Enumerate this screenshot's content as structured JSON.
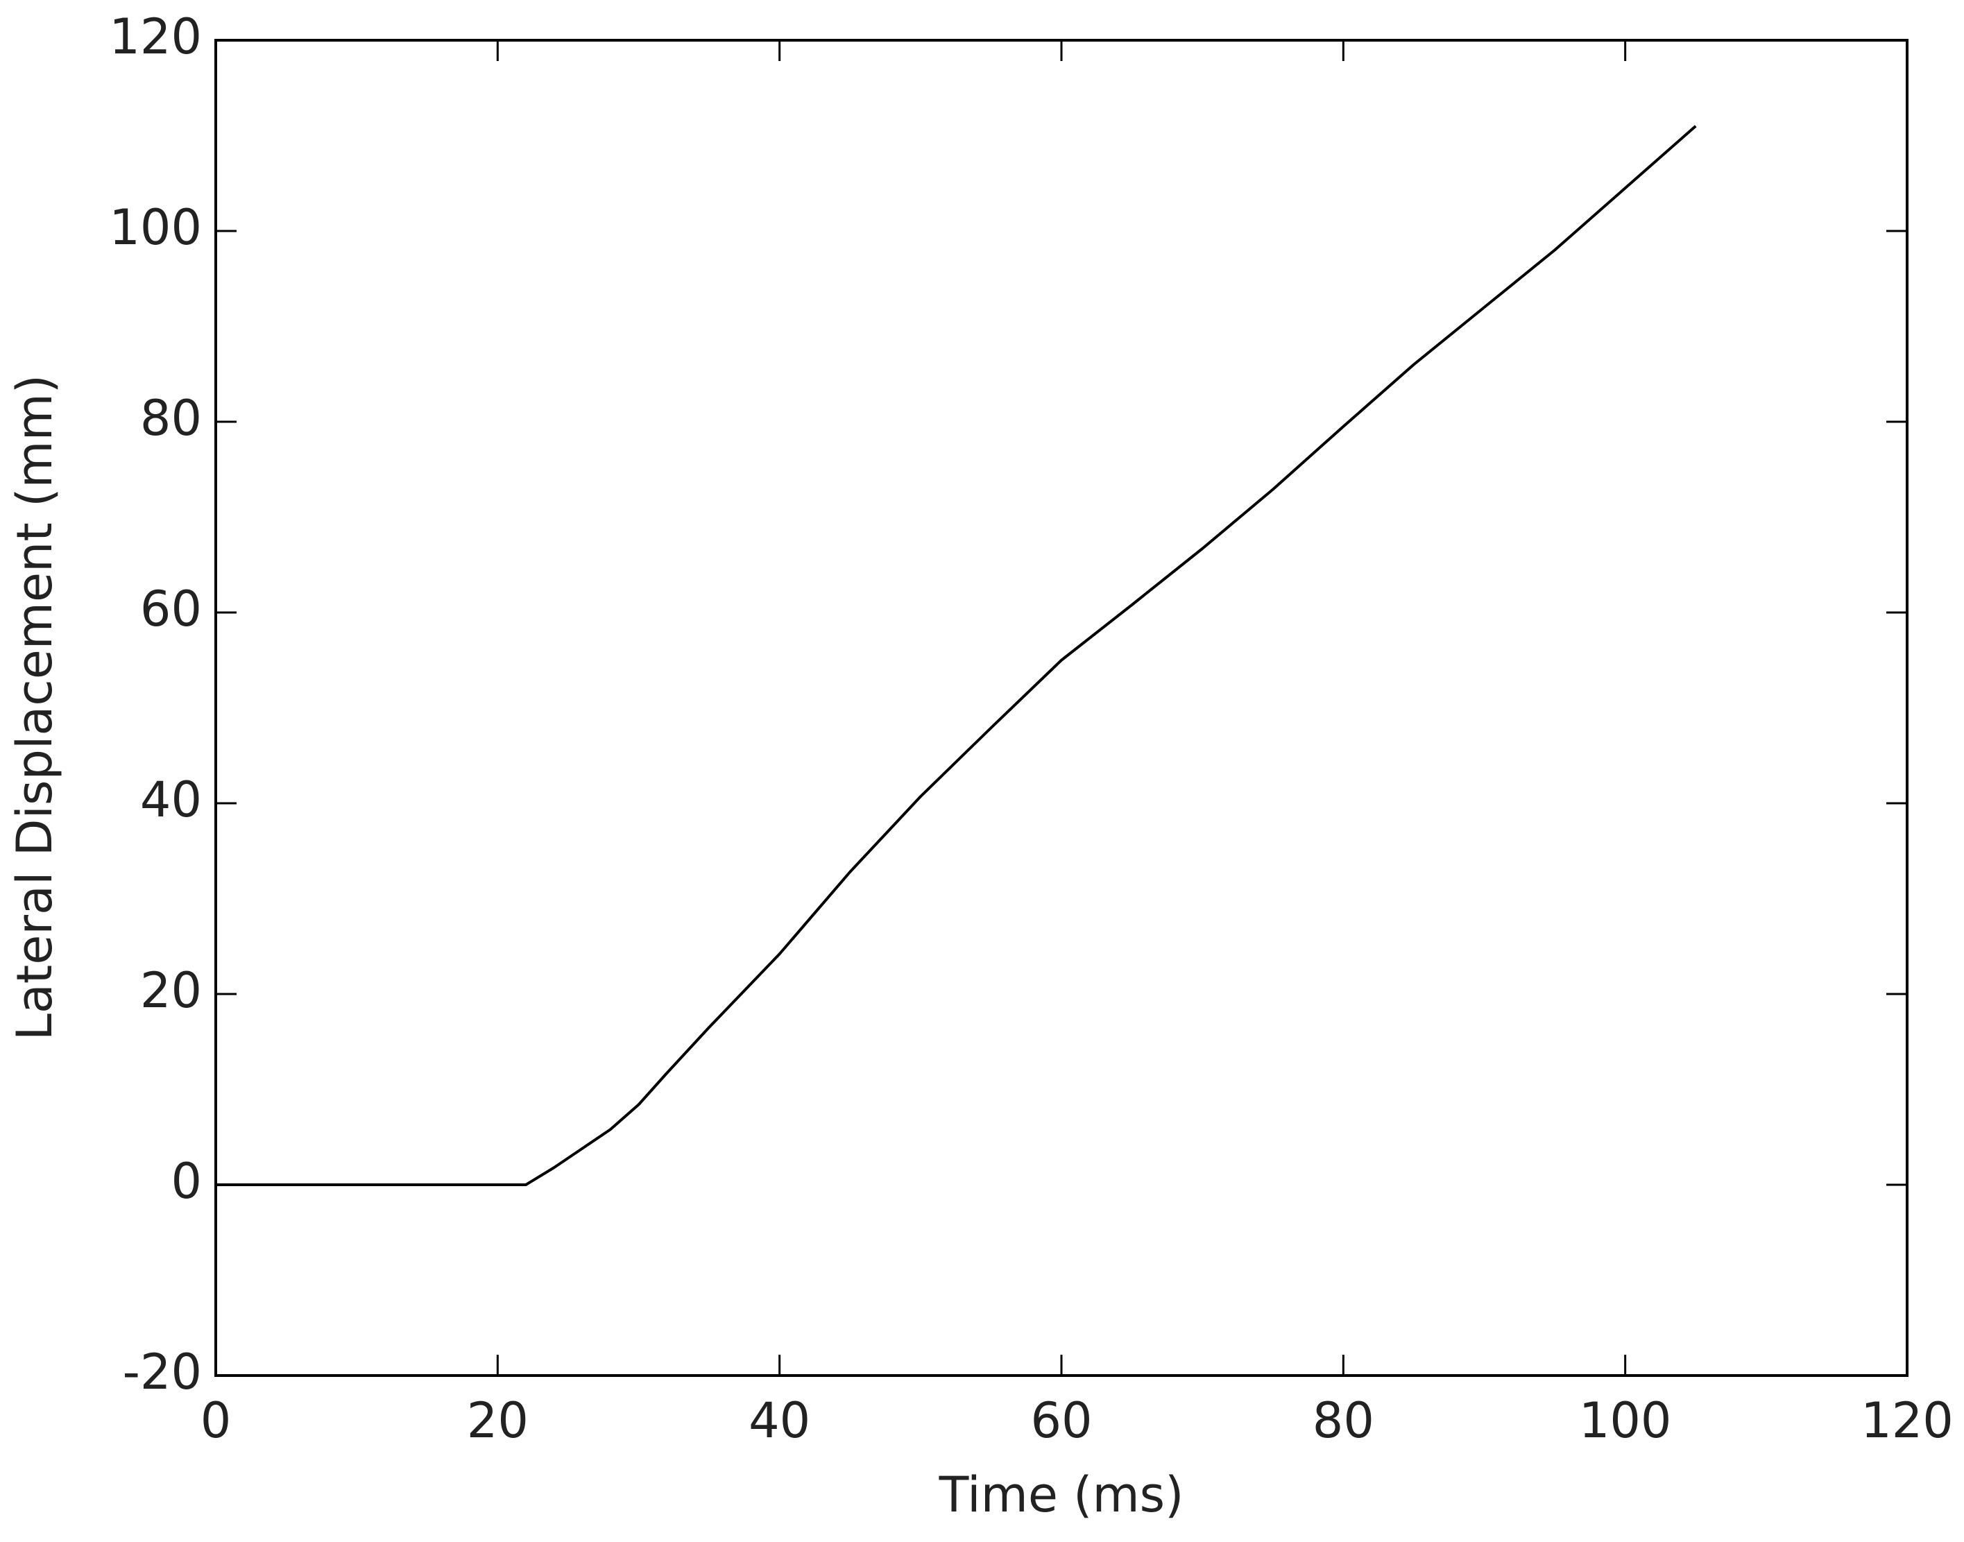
{
  "chart_data": {
    "type": "line",
    "xlabel": "Time (ms)",
    "ylabel": "Lateral Displacement (mm)",
    "x": [
      0,
      22,
      24,
      26,
      28,
      30,
      32,
      35,
      40,
      45,
      50,
      55,
      60,
      65,
      70,
      75,
      80,
      85,
      90,
      95,
      100,
      105
    ],
    "series": [
      {
        "color": "#000000",
        "values": [
          0,
          0,
          1.8,
          3.8,
          5.8,
          8.4,
          11.7,
          16.5,
          24.2,
          32.8,
          40.7,
          47.9,
          55,
          60.8,
          66.7,
          72.9,
          79.5,
          86,
          92,
          98,
          104.5,
          111
        ]
      }
    ],
    "xlim": [
      0,
      120
    ],
    "xticks": [
      0,
      20,
      40,
      60,
      80,
      100,
      120
    ],
    "ylim": [
      -20,
      120
    ],
    "yticks": [
      -20,
      0,
      20,
      40,
      60,
      80,
      100,
      120
    ],
    "grid": false
  }
}
